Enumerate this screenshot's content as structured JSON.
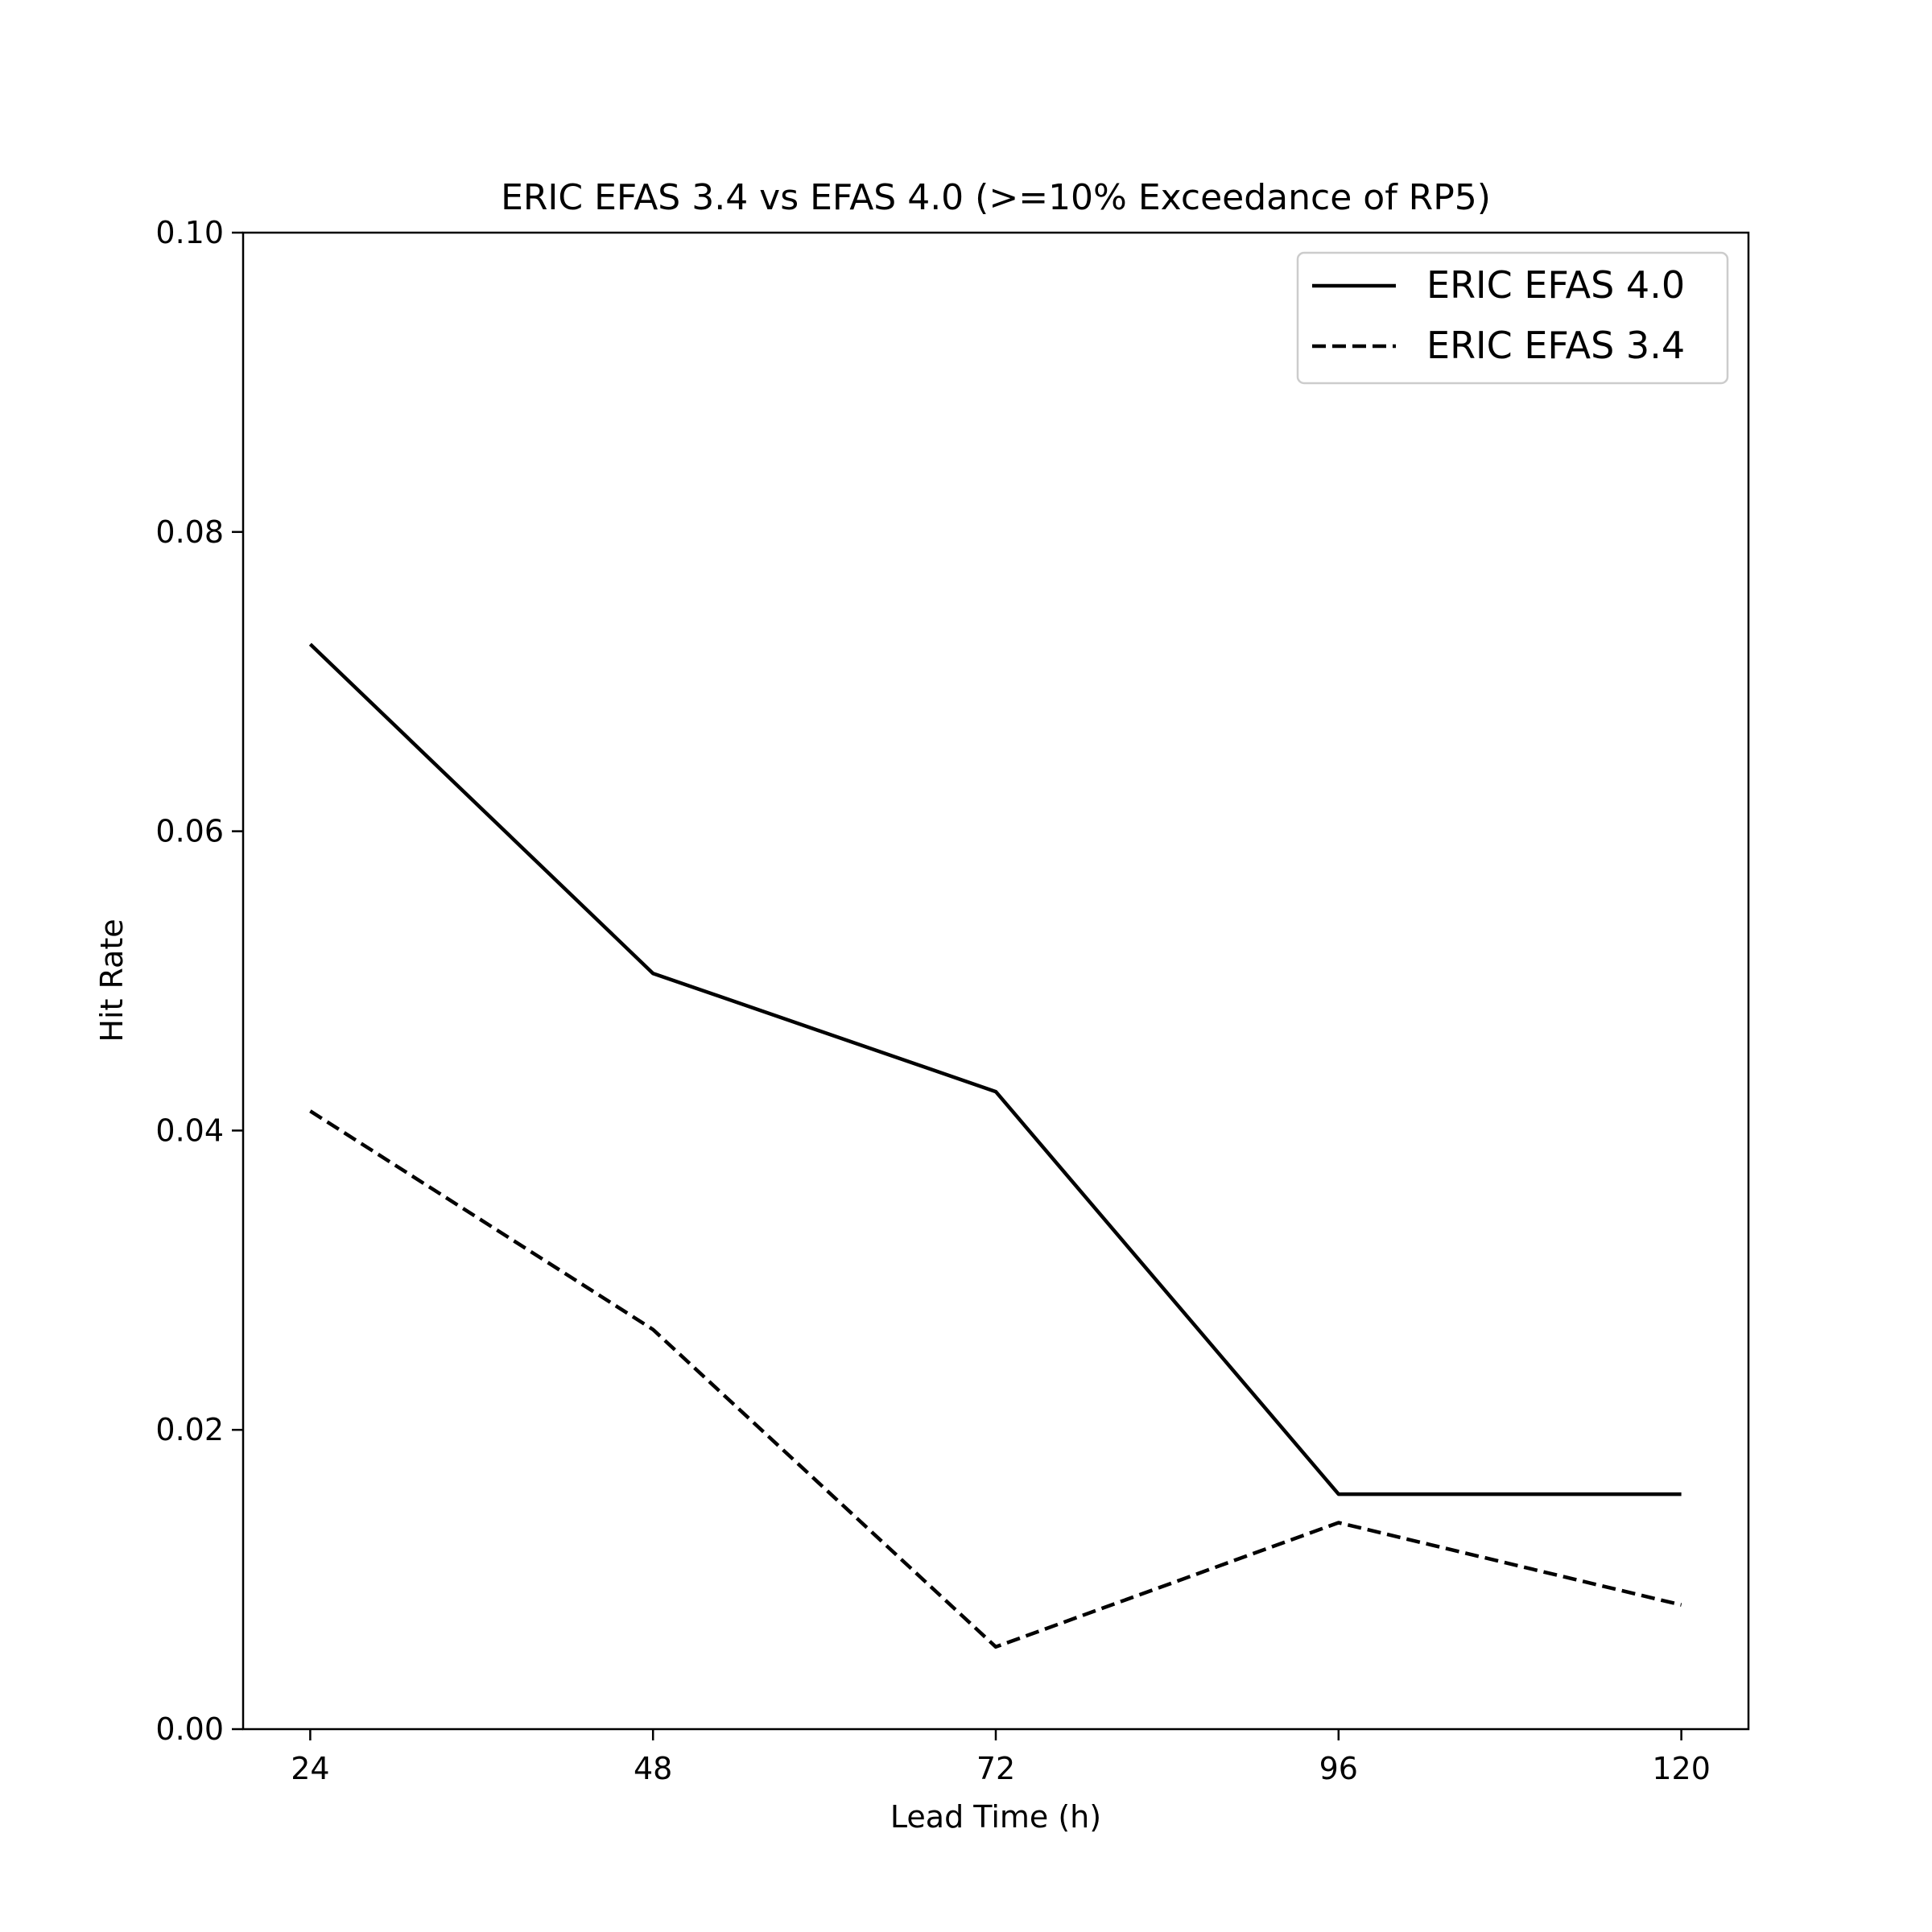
{
  "chart_data": {
    "type": "line",
    "title": "ERIC EFAS 3.4 vs EFAS 4.0 (>=10% Exceedance of RP5)",
    "xlabel": "Lead Time (h)",
    "ylabel": "Hit Rate",
    "x": [
      24,
      48,
      72,
      96,
      120
    ],
    "x_tick_labels": [
      "24",
      "48",
      "72",
      "96",
      "120"
    ],
    "xlim": [
      19.3,
      124.7
    ],
    "ylim": [
      0.0,
      0.1
    ],
    "y_ticks": [
      0.0,
      0.02,
      0.04,
      0.06,
      0.08,
      0.1
    ],
    "y_tick_labels": [
      "0.00",
      "0.02",
      "0.04",
      "0.06",
      "0.08",
      "0.10"
    ],
    "grid": false,
    "legend_position": "top-right",
    "series": [
      {
        "name": "ERIC EFAS 4.0",
        "values": [
          0.0725,
          0.0505,
          0.0426,
          0.0157,
          0.0157
        ],
        "color": "#000000",
        "line_style": "solid"
      },
      {
        "name": "ERIC EFAS 3.4",
        "values": [
          0.0413,
          0.0267,
          0.0055,
          0.0138,
          0.0083
        ],
        "color": "#000000",
        "line_style": "dashed"
      }
    ]
  }
}
